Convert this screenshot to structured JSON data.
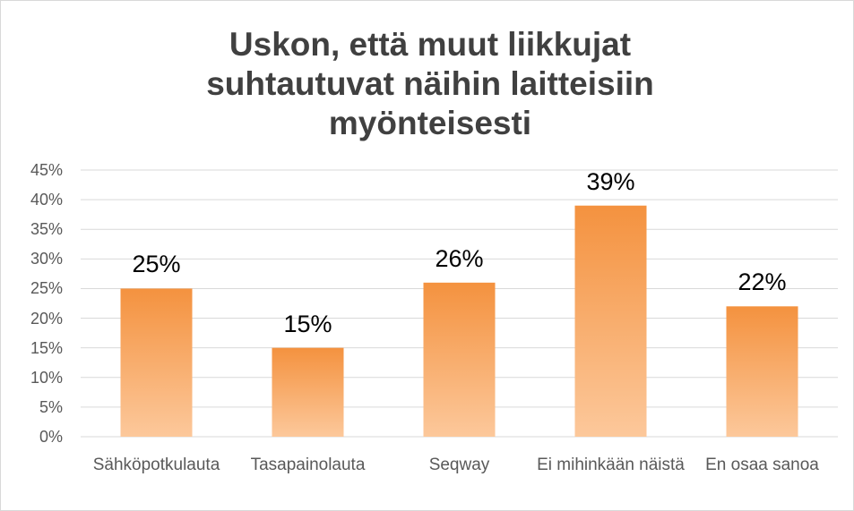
{
  "chart_data": {
    "type": "bar",
    "title": "Uskon, että muut liikkujat suhtautuvat näihin laitteisiin myönteisesti",
    "categories": [
      "Sähköpotkulauta",
      "Tasapainolauta",
      "Seqway",
      "Ei mihinkään näistä",
      "En osaa sanoa"
    ],
    "values": [
      25,
      15,
      26,
      39,
      22
    ],
    "value_labels": [
      "25%",
      "15%",
      "26%",
      "39%",
      "22%"
    ],
    "color": "#f4923f",
    "ylim": [
      0,
      45
    ],
    "yticks": [
      {
        "value": 0,
        "label": "0%"
      },
      {
        "value": 5,
        "label": "5%"
      },
      {
        "value": 10,
        "label": "10%"
      },
      {
        "value": 15,
        "label": "15%"
      },
      {
        "value": 20,
        "label": "20%"
      },
      {
        "value": 25,
        "label": "25%"
      },
      {
        "value": 30,
        "label": "30%"
      },
      {
        "value": 35,
        "label": "35%"
      },
      {
        "value": 40,
        "label": "40%"
      },
      {
        "value": 45,
        "label": "45%"
      }
    ],
    "grid": true
  }
}
